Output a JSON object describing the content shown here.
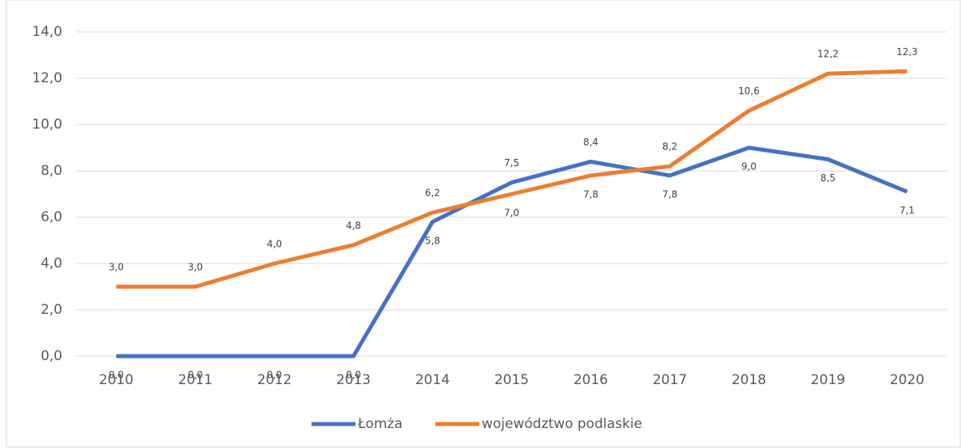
{
  "chart_data": {
    "type": "line",
    "categories": [
      "2010",
      "2011",
      "2012",
      "2013",
      "2014",
      "2015",
      "2016",
      "2017",
      "2018",
      "2019",
      "2020"
    ],
    "series": [
      {
        "name": "Łomża",
        "color": "#4472c4",
        "values": [
          0,
          0,
          0,
          0,
          5.8,
          7.5,
          8.4,
          7.8,
          9.0,
          8.5,
          7.1
        ],
        "value_labels": [
          "0,0",
          "0,0",
          "0,0",
          "0,0",
          "5,8",
          "7,5",
          "8,4",
          "7,8",
          "9,0",
          "8,5",
          "7,1"
        ]
      },
      {
        "name": "województwo podlaskie",
        "color": "#ed7d31",
        "values": [
          3.0,
          3.0,
          4.0,
          4.8,
          6.2,
          7.0,
          7.8,
          8.2,
          10.6,
          12.2,
          12.3
        ],
        "value_labels": [
          "3,0",
          "3,0",
          "4,0",
          "4,8",
          "6,2",
          "7,0",
          "7,8",
          "8,2",
          "10,6",
          "12,2",
          "12,3"
        ]
      }
    ],
    "ylim": [
      0,
      14
    ],
    "yticks": [
      {
        "value": 0,
        "label": "0,0"
      },
      {
        "value": 2,
        "label": "2,0"
      },
      {
        "value": 4,
        "label": "4,0"
      },
      {
        "value": 6,
        "label": "6,0"
      },
      {
        "value": 8,
        "label": "8,0"
      },
      {
        "value": 10,
        "label": "10,0"
      },
      {
        "value": 12,
        "label": "12,0"
      },
      {
        "value": 14,
        "label": "14,0"
      }
    ],
    "grid": true,
    "legend": "bottom"
  }
}
